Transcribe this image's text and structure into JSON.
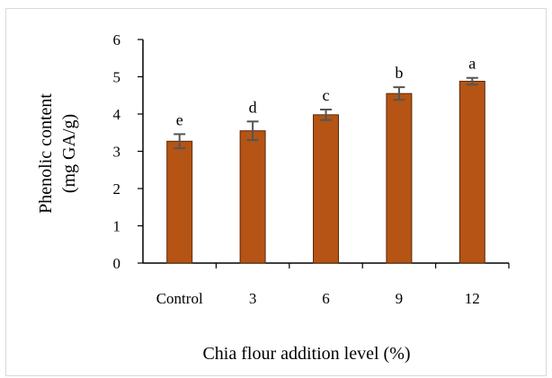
{
  "chart_data": {
    "type": "bar",
    "categories": [
      "Control",
      "3",
      "6",
      "9",
      "12"
    ],
    "values": [
      3.27,
      3.55,
      3.98,
      4.55,
      4.88
    ],
    "errors": [
      0.19,
      0.25,
      0.14,
      0.17,
      0.09
    ],
    "significance_letters": [
      "e",
      "d",
      "c",
      "b",
      "a"
    ],
    "xlabel": "Chia flour addition level (%)",
    "ylabel_lines": [
      "Phenolic content",
      "(mg GA/g)"
    ],
    "ylim": [
      0,
      6
    ],
    "yticks": [
      "0",
      "1",
      "2",
      "3",
      "4",
      "5",
      "6"
    ],
    "grid": false,
    "legend": "none",
    "colors": {
      "bar_fill": "#B55414",
      "bar_stroke": "#5a2a0a",
      "error_bar": "#555555",
      "axis": "#000000"
    }
  }
}
